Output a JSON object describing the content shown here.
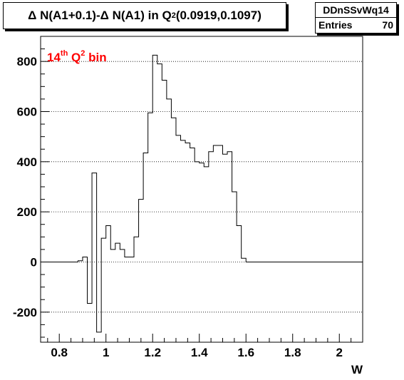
{
  "title": {
    "prefix": "Δ N(A1+0.1)-Δ N(A1) in Q",
    "sup": "2",
    "suffix": "(0.0919,0.1097)"
  },
  "stats": {
    "name": "DDnSSvWq14",
    "entries_label": "Entries",
    "entries_value": "70"
  },
  "annotation": {
    "base": "14",
    "sup_th": "th",
    "mid": " Q",
    "sup_2": "2",
    "end": " bin",
    "color": "#ff0000"
  },
  "chart_data": {
    "type": "histogram",
    "xlabel": "W",
    "ylabel": "",
    "xlim": [
      0.72,
      2.1
    ],
    "ylim": [
      -320,
      900
    ],
    "x_ticks": [
      0.8,
      1,
      1.2,
      1.4,
      1.6,
      1.8,
      2
    ],
    "x_tick_labels": [
      "0.8",
      "1",
      "1.2",
      "1.4",
      "1.6",
      "1.8",
      "2"
    ],
    "y_ticks": [
      -200,
      0,
      200,
      400,
      600,
      800
    ],
    "y_tick_labels": [
      "-200",
      "0",
      "200",
      "400",
      "600",
      "800"
    ],
    "grid": "y-dotted",
    "bin_edges": [
      0.72,
      0.74,
      0.76,
      0.78,
      0.8,
      0.82,
      0.84,
      0.86,
      0.88,
      0.9,
      0.92,
      0.94,
      0.96,
      0.98,
      1.0,
      1.02,
      1.04,
      1.06,
      1.08,
      1.1,
      1.12,
      1.14,
      1.16,
      1.18,
      1.2,
      1.22,
      1.24,
      1.26,
      1.28,
      1.3,
      1.32,
      1.34,
      1.36,
      1.38,
      1.4,
      1.42,
      1.44,
      1.46,
      1.48,
      1.5,
      1.52,
      1.54,
      1.56,
      1.58,
      1.6,
      1.62,
      1.64,
      1.66,
      1.68,
      1.7,
      1.72,
      1.74,
      1.76,
      1.78,
      1.8,
      1.82,
      1.84,
      1.86,
      1.88,
      1.9,
      1.92,
      1.94,
      1.96,
      1.98,
      2.0,
      2.02,
      2.04,
      2.06,
      2.08,
      2.1
    ],
    "values": [
      0,
      0,
      0,
      0,
      0,
      0,
      0,
      0,
      5,
      20,
      -165,
      355,
      -280,
      95,
      145,
      50,
      75,
      50,
      20,
      20,
      100,
      250,
      435,
      595,
      825,
      790,
      725,
      650,
      575,
      505,
      485,
      475,
      455,
      400,
      395,
      380,
      440,
      465,
      465,
      430,
      440,
      280,
      145,
      15,
      0,
      0,
      0,
      0,
      0,
      0,
      0,
      0,
      0,
      0,
      0,
      0,
      0,
      0,
      0,
      0,
      0,
      0,
      0,
      0,
      0,
      0,
      0,
      0,
      0
    ]
  }
}
